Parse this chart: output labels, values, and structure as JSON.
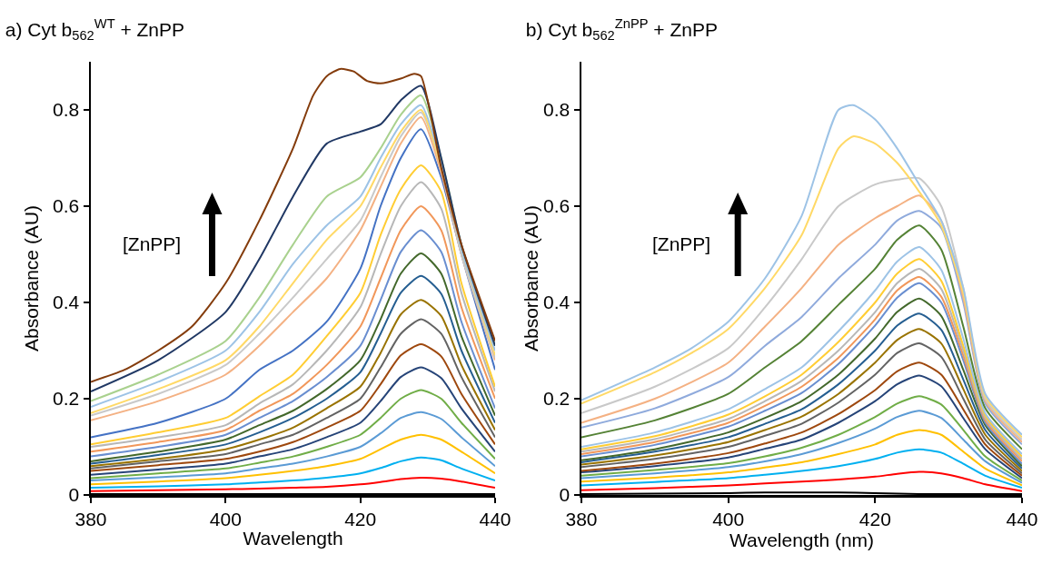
{
  "chart_data": [
    {
      "type": "line",
      "title": "a) Cyt b$_{562}$$^{WT}$ + ZnPP",
      "xlabel": "Wavelength",
      "ylabel": "Absorbance (AU)",
      "annotations": [
        "[ZnPP]"
      ],
      "xlim": [
        380,
        440
      ],
      "xticks": [
        380,
        400,
        420,
        440
      ],
      "ylim": [
        0,
        0.9
      ],
      "yticks": [
        0,
        0.2,
        0.4,
        0.6,
        0.8
      ],
      "x": [
        380,
        390,
        400,
        405,
        410,
        415,
        420,
        423,
        426,
        429,
        432,
        435,
        440
      ],
      "series": [
        {
          "color": "#000000",
          "values": [
            0.002,
            0.002,
            0.002,
            0.002,
            0.002,
            0.002,
            0.002,
            0.002,
            0.002,
            0.002,
            0.002,
            0.002,
            0.002
          ]
        },
        {
          "color": "#ff0000",
          "values": [
            0.008,
            0.01,
            0.012,
            0.013,
            0.015,
            0.017,
            0.022,
            0.027,
            0.033,
            0.036,
            0.034,
            0.028,
            0.015
          ]
        },
        {
          "color": "#00b0f0",
          "values": [
            0.015,
            0.018,
            0.022,
            0.026,
            0.03,
            0.036,
            0.045,
            0.056,
            0.07,
            0.078,
            0.072,
            0.055,
            0.03
          ]
        },
        {
          "color": "#ffc000",
          "values": [
            0.022,
            0.028,
            0.035,
            0.042,
            0.05,
            0.06,
            0.075,
            0.095,
            0.115,
            0.125,
            0.115,
            0.09,
            0.045
          ]
        },
        {
          "color": "#5b9bd5",
          "values": [
            0.03,
            0.037,
            0.045,
            0.055,
            0.065,
            0.08,
            0.1,
            0.128,
            0.16,
            0.172,
            0.158,
            0.12,
            0.06
          ]
        },
        {
          "color": "#70ad47",
          "values": [
            0.035,
            0.045,
            0.055,
            0.067,
            0.08,
            0.1,
            0.125,
            0.16,
            0.2,
            0.218,
            0.2,
            0.15,
            0.075
          ]
        },
        {
          "color": "#264478",
          "values": [
            0.042,
            0.053,
            0.065,
            0.08,
            0.095,
            0.12,
            0.15,
            0.195,
            0.245,
            0.265,
            0.243,
            0.18,
            0.09
          ]
        },
        {
          "color": "#9e480e",
          "values": [
            0.05,
            0.062,
            0.075,
            0.09,
            0.11,
            0.14,
            0.175,
            0.23,
            0.29,
            0.313,
            0.288,
            0.21,
            0.105
          ]
        },
        {
          "color": "#636363",
          "values": [
            0.055,
            0.07,
            0.085,
            0.105,
            0.125,
            0.16,
            0.2,
            0.265,
            0.335,
            0.365,
            0.335,
            0.245,
            0.12
          ]
        },
        {
          "color": "#997300",
          "values": [
            0.06,
            0.075,
            0.095,
            0.115,
            0.14,
            0.18,
            0.225,
            0.295,
            0.375,
            0.405,
            0.372,
            0.27,
            0.135
          ]
        },
        {
          "color": "#255e91",
          "values": [
            0.065,
            0.083,
            0.105,
            0.13,
            0.16,
            0.2,
            0.255,
            0.335,
            0.42,
            0.455,
            0.418,
            0.3,
            0.15
          ]
        },
        {
          "color": "#43682b",
          "values": [
            0.07,
            0.09,
            0.115,
            0.145,
            0.175,
            0.22,
            0.28,
            0.365,
            0.46,
            0.502,
            0.46,
            0.33,
            0.165
          ]
        },
        {
          "color": "#698ed0",
          "values": [
            0.08,
            0.1,
            0.125,
            0.16,
            0.195,
            0.245,
            0.31,
            0.405,
            0.505,
            0.55,
            0.505,
            0.36,
            0.18
          ]
        },
        {
          "color": "#f1975a",
          "values": [
            0.09,
            0.11,
            0.135,
            0.175,
            0.21,
            0.27,
            0.35,
            0.45,
            0.55,
            0.6,
            0.55,
            0.39,
            0.2
          ]
        },
        {
          "color": "#b7b7b7",
          "values": [
            0.1,
            0.12,
            0.145,
            0.19,
            0.23,
            0.3,
            0.39,
            0.5,
            0.6,
            0.65,
            0.595,
            0.42,
            0.215
          ]
        },
        {
          "color": "#ffcd33",
          "values": [
            0.105,
            0.13,
            0.16,
            0.205,
            0.25,
            0.33,
            0.42,
            0.54,
            0.635,
            0.685,
            0.63,
            0.44,
            0.225
          ]
        },
        {
          "color": "#4472c4",
          "values": [
            0.12,
            0.15,
            0.2,
            0.26,
            0.3,
            0.36,
            0.47,
            0.6,
            0.7,
            0.76,
            0.66,
            0.5,
            0.26
          ]
        },
        {
          "color": "#f4b183",
          "values": [
            0.155,
            0.195,
            0.25,
            0.31,
            0.38,
            0.45,
            0.55,
            0.64,
            0.73,
            0.785,
            0.67,
            0.5,
            0.28
          ]
        },
        {
          "color": "#c9c9c9",
          "values": [
            0.165,
            0.21,
            0.27,
            0.335,
            0.41,
            0.49,
            0.57,
            0.66,
            0.745,
            0.795,
            0.68,
            0.5,
            0.285
          ]
        },
        {
          "color": "#ffd966",
          "values": [
            0.17,
            0.22,
            0.28,
            0.35,
            0.44,
            0.53,
            0.6,
            0.68,
            0.755,
            0.8,
            0.68,
            0.51,
            0.29
          ]
        },
        {
          "color": "#9dc3e6",
          "values": [
            0.183,
            0.235,
            0.3,
            0.38,
            0.48,
            0.56,
            0.62,
            0.7,
            0.77,
            0.81,
            0.69,
            0.51,
            0.3
          ]
        },
        {
          "color": "#a9d18e",
          "values": [
            0.195,
            0.25,
            0.32,
            0.41,
            0.52,
            0.62,
            0.66,
            0.72,
            0.79,
            0.83,
            0.7,
            0.52,
            0.31
          ]
        },
        {
          "color": "#203864",
          "values": [
            0.215,
            0.28,
            0.38,
            0.49,
            0.62,
            0.73,
            0.755,
            0.77,
            0.82,
            0.85,
            0.7,
            0.52,
            0.31
          ]
        },
        {
          "color": "#843c0c",
          "x": [
            380,
            385,
            390,
            395,
            400,
            405,
            410,
            413,
            415,
            417,
            419,
            421,
            423,
            426,
            428,
            429,
            432,
            435,
            440
          ],
          "values": [
            0.235,
            0.26,
            0.3,
            0.35,
            0.44,
            0.57,
            0.72,
            0.83,
            0.87,
            0.885,
            0.88,
            0.86,
            0.855,
            0.865,
            0.875,
            0.87,
            0.68,
            0.52,
            0.32
          ]
        }
      ]
    },
    {
      "type": "line",
      "title": "b) Cyt b$_{562}$$^{ZnPP}$ + ZnPP",
      "xlabel": "Wavelength (nm)",
      "ylabel": "Absorbance (AU)",
      "annotations": [
        "[ZnPP]"
      ],
      "xlim": [
        380,
        440
      ],
      "xticks": [
        380,
        400,
        420,
        440
      ],
      "ylim": [
        0,
        0.9
      ],
      "yticks": [
        0,
        0.2,
        0.4,
        0.6,
        0.8
      ],
      "x": [
        380,
        390,
        400,
        405,
        410,
        415,
        420,
        423,
        426,
        429,
        432,
        435,
        440
      ],
      "series": [
        {
          "color": "#000000",
          "values": [
            0.002,
            0.003,
            0.004,
            0.005,
            0.005,
            0.005,
            0.004,
            0.003,
            0.002,
            0.002,
            0.002,
            0.002,
            0.002
          ]
        },
        {
          "color": "#ff0000",
          "values": [
            0.01,
            0.014,
            0.02,
            0.024,
            0.028,
            0.032,
            0.038,
            0.044,
            0.048,
            0.045,
            0.035,
            0.022,
            0.008
          ]
        },
        {
          "color": "#00b0f0",
          "values": [
            0.02,
            0.027,
            0.035,
            0.042,
            0.05,
            0.06,
            0.075,
            0.088,
            0.095,
            0.088,
            0.065,
            0.04,
            0.015
          ]
        },
        {
          "color": "#ffc000",
          "values": [
            0.028,
            0.036,
            0.047,
            0.057,
            0.068,
            0.085,
            0.105,
            0.125,
            0.135,
            0.125,
            0.09,
            0.055,
            0.02
          ]
        },
        {
          "color": "#5b9bd5",
          "values": [
            0.035,
            0.045,
            0.058,
            0.07,
            0.085,
            0.108,
            0.138,
            0.162,
            0.175,
            0.16,
            0.115,
            0.07,
            0.025
          ]
        },
        {
          "color": "#70ad47",
          "values": [
            0.04,
            0.052,
            0.066,
            0.08,
            0.098,
            0.125,
            0.162,
            0.19,
            0.205,
            0.188,
            0.135,
            0.08,
            0.03
          ]
        },
        {
          "color": "#264478",
          "values": [
            0.047,
            0.06,
            0.078,
            0.096,
            0.115,
            0.15,
            0.195,
            0.23,
            0.248,
            0.226,
            0.16,
            0.095,
            0.035
          ]
        },
        {
          "color": "#9e480e",
          "values": [
            0.05,
            0.065,
            0.087,
            0.107,
            0.13,
            0.168,
            0.218,
            0.257,
            0.275,
            0.25,
            0.178,
            0.105,
            0.04
          ]
        },
        {
          "color": "#636363",
          "values": [
            0.058,
            0.075,
            0.1,
            0.123,
            0.148,
            0.192,
            0.25,
            0.295,
            0.315,
            0.287,
            0.2,
            0.115,
            0.045
          ]
        },
        {
          "color": "#997300",
          "values": [
            0.063,
            0.082,
            0.11,
            0.135,
            0.163,
            0.21,
            0.275,
            0.322,
            0.345,
            0.315,
            0.22,
            0.125,
            0.05
          ]
        },
        {
          "color": "#255e91",
          "values": [
            0.068,
            0.09,
            0.12,
            0.148,
            0.178,
            0.23,
            0.3,
            0.352,
            0.377,
            0.343,
            0.24,
            0.135,
            0.055
          ]
        },
        {
          "color": "#43682b",
          "values": [
            0.072,
            0.095,
            0.13,
            0.16,
            0.195,
            0.25,
            0.325,
            0.38,
            0.408,
            0.372,
            0.26,
            0.145,
            0.06
          ]
        },
        {
          "color": "#698ed0",
          "values": [
            0.08,
            0.104,
            0.142,
            0.175,
            0.212,
            0.272,
            0.352,
            0.41,
            0.44,
            0.4,
            0.28,
            0.15,
            0.065
          ]
        },
        {
          "color": "#f1975a",
          "values": [
            0.085,
            0.11,
            0.15,
            0.185,
            0.225,
            0.285,
            0.365,
            0.425,
            0.453,
            0.412,
            0.29,
            0.155,
            0.07
          ]
        },
        {
          "color": "#b7b7b7",
          "values": [
            0.09,
            0.116,
            0.158,
            0.195,
            0.237,
            0.3,
            0.38,
            0.44,
            0.47,
            0.428,
            0.3,
            0.16,
            0.075
          ]
        },
        {
          "color": "#ffcd33",
          "values": [
            0.095,
            0.122,
            0.167,
            0.205,
            0.25,
            0.318,
            0.4,
            0.46,
            0.49,
            0.445,
            0.31,
            0.165,
            0.08
          ]
        },
        {
          "color": "#9dc3e6",
          "values": [
            0.1,
            0.13,
            0.178,
            0.22,
            0.265,
            0.34,
            0.425,
            0.485,
            0.515,
            0.468,
            0.325,
            0.17,
            0.085
          ]
        },
        {
          "color": "#548235",
          "values": [
            0.12,
            0.155,
            0.21,
            0.265,
            0.32,
            0.395,
            0.47,
            0.53,
            0.56,
            0.51,
            0.35,
            0.18,
            0.095
          ]
        },
        {
          "color": "#8faadc",
          "values": [
            0.14,
            0.18,
            0.245,
            0.31,
            0.37,
            0.45,
            0.52,
            0.57,
            0.59,
            0.555,
            0.4,
            0.19,
            0.105
          ]
        },
        {
          "color": "#f4b183",
          "values": [
            0.15,
            0.2,
            0.275,
            0.35,
            0.43,
            0.52,
            0.575,
            0.6,
            0.622,
            0.57,
            0.41,
            0.195,
            0.11
          ]
        },
        {
          "color": "#c9c9c9",
          "values": [
            0.17,
            0.225,
            0.305,
            0.39,
            0.49,
            0.6,
            0.645,
            0.655,
            0.658,
            0.6,
            0.43,
            0.2,
            0.115
          ]
        },
        {
          "color": "#ffd966",
          "x": [
            380,
            390,
            395,
            400,
            405,
            410,
            415,
            417,
            420,
            423,
            426,
            429,
            432,
            435,
            440
          ],
          "values": [
            0.19,
            0.255,
            0.295,
            0.345,
            0.43,
            0.54,
            0.72,
            0.745,
            0.73,
            0.69,
            0.63,
            0.56,
            0.42,
            0.205,
            0.12
          ]
        },
        {
          "color": "#9dc3e6",
          "x": [
            380,
            390,
            395,
            400,
            405,
            410,
            415,
            417,
            420,
            423,
            426,
            429,
            432,
            435,
            440
          ],
          "values": [
            0.197,
            0.265,
            0.305,
            0.36,
            0.45,
            0.58,
            0.8,
            0.81,
            0.78,
            0.72,
            0.645,
            0.57,
            0.43,
            0.21,
            0.125
          ]
        }
      ]
    }
  ]
}
